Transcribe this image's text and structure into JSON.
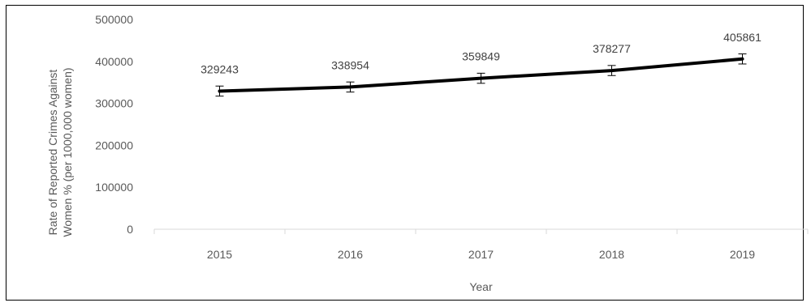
{
  "chart_data": {
    "type": "line",
    "categories": [
      "2015",
      "2016",
      "2017",
      "2018",
      "2019"
    ],
    "series": [
      {
        "values": [
          329243,
          338954,
          359849,
          378277,
          405861
        ]
      }
    ],
    "data_labels": [
      "329243",
      "338954",
      "359849",
      "378277",
      "405861"
    ],
    "xlabel": "Year",
    "ylabel_lines": [
      "Rate of Reported Crimes Against",
      "Women % (per 1000,000 women)"
    ],
    "ylim": [
      0,
      500000
    ],
    "yticks": [
      "0",
      "100000",
      "200000",
      "300000",
      "400000",
      "500000"
    ],
    "error_bar": 12000,
    "grid": false,
    "legend": "none",
    "line_color": "#000000"
  }
}
